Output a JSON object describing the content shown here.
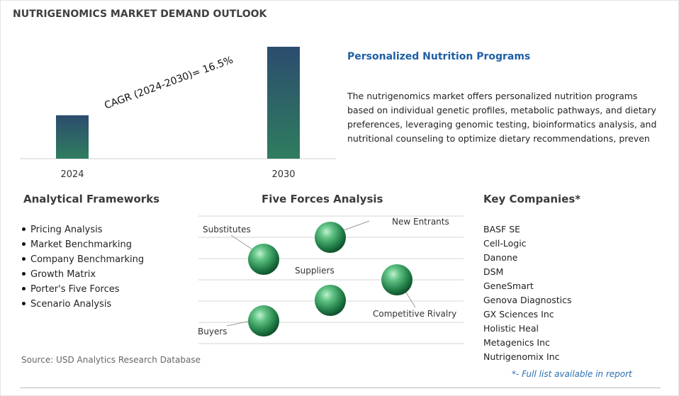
{
  "header": {
    "title": "NUTRIGENOMICS MARKET DEMAND OUTLOOK"
  },
  "chart_data": {
    "type": "bar",
    "categories": [
      "2024",
      "2030"
    ],
    "values": [
      38.8,
      100
    ],
    "annotation": "CAGR (2024-2030)=  16.5%",
    "colors": {
      "bar_top": "#2c4c6e",
      "bar_bottom": "#2f7d5f"
    }
  },
  "description": {
    "title": "Personalized Nutrition Programs",
    "lines": [
      "The nutrigenomics market offers personalized nutrition programs",
      "based on individual genetic profiles, metabolic pathways, and dietary",
      "preferences, leveraging genomic testing, bioinformatics analysis, and",
      "nutritional counseling to optimize dietary recommendations, preven"
    ]
  },
  "frameworks": {
    "title": "Analytical Frameworks",
    "items": [
      "Pricing Analysis",
      "Market Benchmarking",
      "Company Benchmarking",
      "Growth Matrix",
      "Porter's Five Forces",
      "Scenario Analysis"
    ]
  },
  "five_forces": {
    "title": "Five Forces Analysis",
    "labels": {
      "substitutes": "Substitutes",
      "new_entrants": "New Entrants",
      "suppliers": "Suppliers",
      "competitive_rivalry": "Competitive Rivalry",
      "buyers": "Buyers"
    }
  },
  "companies": {
    "title": "Key Companies*",
    "items": [
      "BASF SE",
      "Cell-Logic",
      "Danone",
      "DSM",
      "GeneSmart",
      "Genova Diagnostics",
      "GX Sciences Inc",
      "Holistic Heal",
      "Metagenics Inc",
      "Nutrigenomix Inc"
    ],
    "note": "*- Full list available in report"
  },
  "footer": {
    "source": "Source: USD Analytics Research Database"
  }
}
